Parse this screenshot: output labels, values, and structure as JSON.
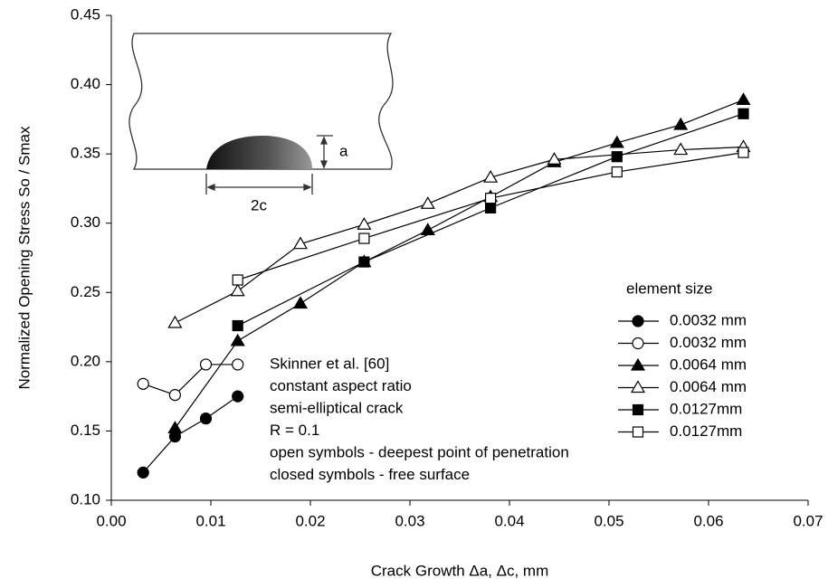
{
  "chart_data": {
    "type": "line",
    "x_label": "Crack Growth Δa, Δc, mm",
    "y_label": "Normalized Opening Stress  So / Smax",
    "xlim": [
      0,
      0.07
    ],
    "xticks": [
      {
        "value": 0,
        "label": "0.00"
      },
      0.01,
      0.02,
      0.03,
      0.04,
      0.05,
      0.06,
      0.07
    ],
    "ylim": [
      0.1,
      0.45
    ],
    "yticks": [
      {
        "value": 0.1,
        "label": "0.10"
      },
      0.15,
      {
        "value": 0.2,
        "label": "0.20"
      },
      0.25,
      {
        "value": 0.3,
        "label": "0.30"
      },
      0.35,
      {
        "value": 0.4,
        "label": "0.40"
      },
      0.45
    ],
    "legend_title": "element size",
    "series": [
      {
        "name": "0.0032 mm",
        "color": "#000000",
        "marker": "circle",
        "filled": true,
        "x": [
          0.0032,
          0.0064,
          0.0095,
          0.0127
        ],
        "values": [
          0.12,
          0.146,
          0.159,
          0.175
        ]
      },
      {
        "name": "0.0032 mm",
        "color": "#000000",
        "marker": "circle",
        "filled": false,
        "x": [
          0.0032,
          0.0064,
          0.0095,
          0.0127
        ],
        "values": [
          0.184,
          0.176,
          0.198,
          0.198
        ]
      },
      {
        "name": "0.0064 mm",
        "color": "#000000",
        "marker": "triangle",
        "filled": true,
        "x": [
          0.0064,
          0.0127,
          0.019,
          0.0254,
          0.0318,
          0.0381,
          0.0445,
          0.0508,
          0.0572,
          0.0635
        ],
        "values": [
          0.152,
          0.215,
          0.242,
          0.272,
          0.295,
          0.319,
          0.344,
          0.358,
          0.371,
          0.389
        ]
      },
      {
        "name": "0.0064 mm",
        "color": "#000000",
        "marker": "triangle",
        "filled": false,
        "x": [
          0.0064,
          0.0127,
          0.019,
          0.0254,
          0.0318,
          0.0381,
          0.0445,
          0.0572,
          0.0635
        ],
        "values": [
          0.228,
          0.251,
          0.285,
          0.299,
          0.314,
          0.333,
          0.346,
          0.353,
          0.355
        ]
      },
      {
        "name": "0.0127mm",
        "color": "#000000",
        "marker": "square",
        "filled": true,
        "x": [
          0.0127,
          0.0254,
          0.0381,
          0.0508,
          0.0635
        ],
        "values": [
          0.226,
          0.272,
          0.311,
          0.348,
          0.379
        ]
      },
      {
        "name": "0.0127mm",
        "color": "#000000",
        "marker": "square",
        "filled": false,
        "x": [
          0.0127,
          0.0254,
          0.0381,
          0.0508,
          0.0635
        ],
        "values": [
          0.259,
          0.289,
          0.318,
          0.337,
          0.351
        ]
      }
    ],
    "annotations": [
      "Skinner et al. [60]",
      "constant aspect ratio",
      "semi-elliptical crack",
      "R = 0.1",
      "open symbols - deepest point of penetration",
      "closed symbols - free surface"
    ],
    "inset_labels": [
      "a",
      "2c"
    ]
  }
}
